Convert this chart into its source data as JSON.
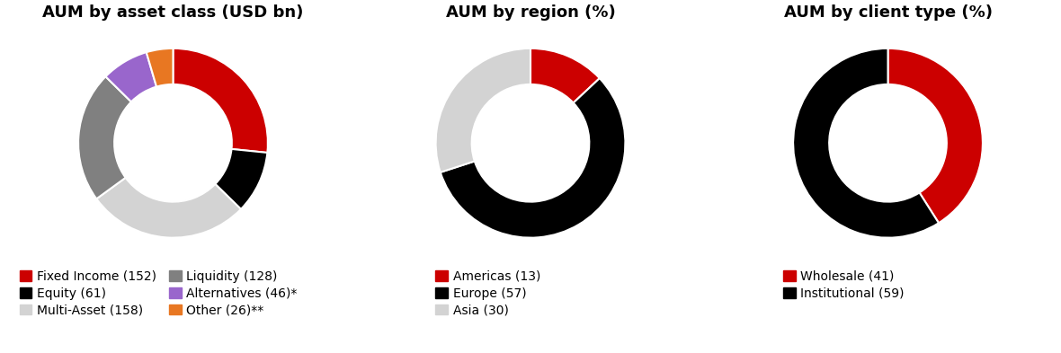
{
  "chart1": {
    "title": "AUM by asset class (USD bn)",
    "values": [
      152,
      61,
      158,
      128,
      46,
      26
    ],
    "colors": [
      "#cc0000",
      "#000000",
      "#d3d3d3",
      "#808080",
      "#9966cc",
      "#e87722"
    ],
    "labels_col1": [
      "Fixed Income (152)",
      "Multi-Asset (158)",
      "Alternatives (46)*"
    ],
    "labels_col2": [
      "Equity (61)",
      "Liquidity (128)",
      "Other (26)**"
    ],
    "colors_col1": [
      "#cc0000",
      "#d3d3d3",
      "#9966cc"
    ],
    "colors_col2": [
      "#000000",
      "#808080",
      "#e87722"
    ],
    "legend_cols": 2
  },
  "chart2": {
    "title": "AUM by region (%)",
    "values": [
      13,
      57,
      30
    ],
    "colors": [
      "#cc0000",
      "#000000",
      "#d3d3d3"
    ],
    "labels": [
      "Americas (13)",
      "Europe (57)",
      "Asia (30)"
    ],
    "legend_cols": 1
  },
  "chart3": {
    "title": "AUM by client type (%)",
    "values": [
      41,
      59
    ],
    "colors": [
      "#cc0000",
      "#000000"
    ],
    "labels": [
      "Wholesale (41)",
      "Institutional (59)"
    ],
    "legend_cols": 1
  },
  "bg_color": "#ffffff",
  "title_fontsize": 13,
  "legend_fontsize": 10,
  "donut_width": 0.38
}
